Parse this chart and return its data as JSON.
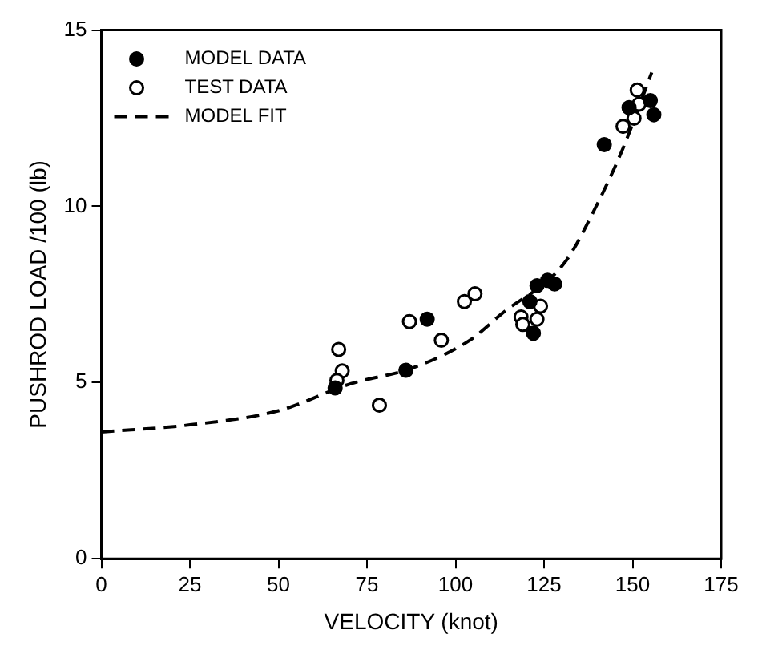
{
  "chart_data": {
    "type": "scatter",
    "xlabel": "VELOCITY (knot)",
    "ylabel": "PUSHROD LOAD /100 (lb)",
    "xlim": [
      0,
      175
    ],
    "xticks": [
      0,
      25,
      50,
      75,
      100,
      125,
      150,
      175
    ],
    "ylim": [
      0,
      15
    ],
    "yticks": [
      0,
      5,
      10,
      15
    ],
    "grid": false,
    "legend": "top left",
    "series": [
      {
        "name": "MODEL DATA",
        "marker": "circle",
        "color": "#000000",
        "x": [
          66,
          86,
          92,
          121,
          122,
          123,
          128,
          126,
          142,
          149,
          155,
          156
        ],
        "values": [
          4.85,
          5.35,
          6.8,
          7.3,
          6.4,
          7.75,
          7.8,
          7.9,
          11.75,
          12.8,
          13.0,
          12.6
        ]
      },
      {
        "name": "TEST DATA",
        "marker": "circle",
        "color": "#ffffff",
        "x": [
          67,
          68,
          66.5,
          78.5,
          87,
          96,
          102.5,
          105.5,
          118.5,
          119,
          123,
          124,
          151.3,
          151.8,
          150.4,
          147.3
        ],
        "values": [
          5.94,
          5.33,
          5.06,
          4.36,
          6.73,
          6.2,
          7.3,
          7.52,
          6.86,
          6.65,
          6.8,
          7.17,
          13.3,
          12.9,
          12.5,
          12.27
        ]
      },
      {
        "name": "MODEL FIT",
        "type": "line",
        "marker": "none",
        "line_style": "dashed",
        "color": "#000000",
        "x": [
          0,
          25,
          50,
          70.5,
          87.5,
          104,
          113,
          130.8,
          139.7,
          147.3,
          155.4
        ],
        "values": [
          3.6,
          3.8,
          4.2,
          4.97,
          5.4,
          6.2,
          6.95,
          8.4,
          10.0,
          11.65,
          13.8
        ]
      }
    ]
  }
}
